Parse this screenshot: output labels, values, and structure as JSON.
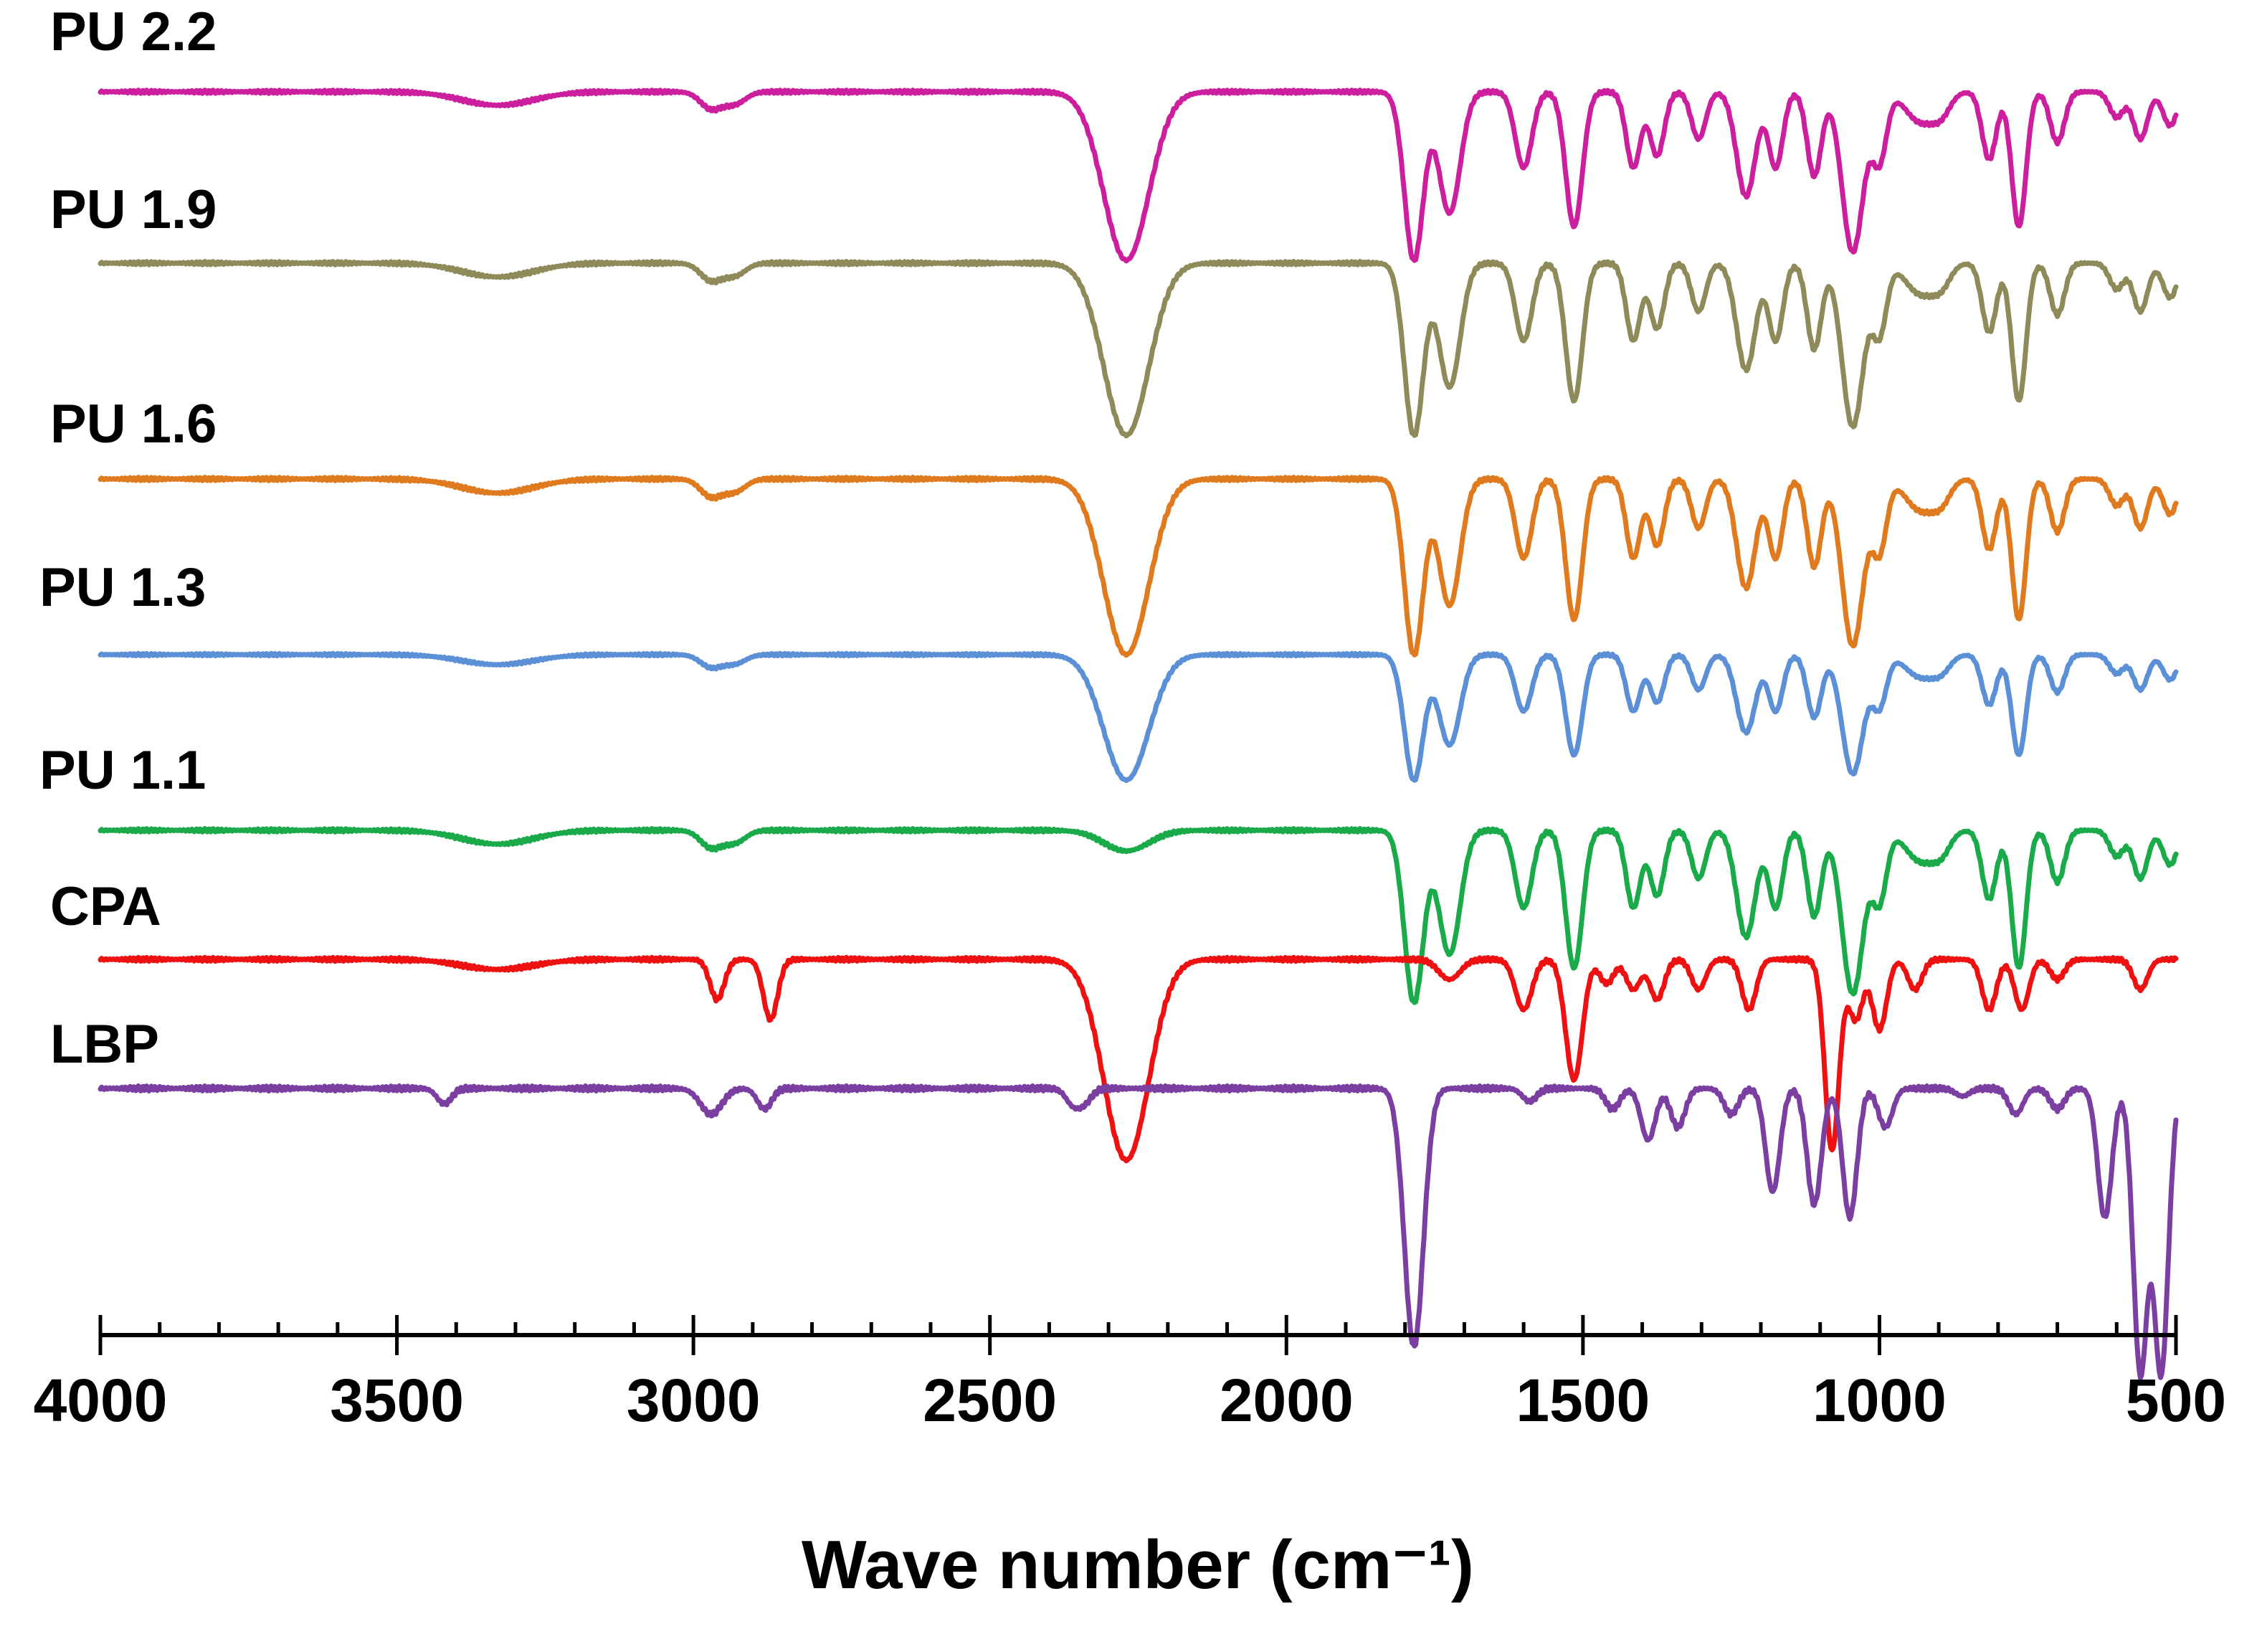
{
  "chart_data": {
    "type": "line",
    "title": "",
    "xlabel": "Wave number (cm⁻¹)",
    "ylabel": "",
    "xlim": [
      4000,
      500
    ],
    "x_ticks": [
      4000,
      3500,
      3000,
      2500,
      2000,
      1500,
      1000,
      500
    ],
    "x_tick_labels": [
      "4000",
      "3500",
      "3000",
      "2500",
      "2000",
      "1500",
      "1000",
      "500"
    ],
    "minor_tick_step": 100,
    "peaks_common": [
      [
        3330,
        0.08
      ],
      [
        2970,
        0.1
      ],
      [
        2930,
        0.07
      ],
      [
        2270,
        1.0
      ],
      [
        1785,
        1.0
      ],
      [
        1725,
        0.72
      ],
      [
        1600,
        0.45
      ],
      [
        1515,
        0.8
      ],
      [
        1415,
        0.45
      ],
      [
        1375,
        0.38
      ],
      [
        1305,
        0.28
      ],
      [
        1225,
        0.62
      ],
      [
        1175,
        0.45
      ],
      [
        1110,
        0.5
      ],
      [
        1045,
        0.95
      ],
      [
        1000,
        0.4
      ],
      [
        930,
        0.18
      ],
      [
        895,
        0.1
      ],
      [
        815,
        0.4
      ],
      [
        765,
        0.8
      ],
      [
        700,
        0.3
      ],
      [
        600,
        0.15
      ],
      [
        560,
        0.28
      ],
      [
        510,
        0.2
      ]
    ],
    "peak_widths": {
      "default": 12,
      "3330": 60,
      "2970": 18,
      "2930": 18,
      "2270": 38,
      "1785": 16,
      "1725": 18,
      "1600": 14,
      "1515": 14,
      "1225": 16,
      "1175": 12,
      "1045": 18,
      "930": 25,
      "895": 15
    },
    "series": [
      {
        "name": "PU 2.2",
        "label": "PU 2.2",
        "color": "#cc1f9e",
        "baseline": 0.98,
        "scale": 0.38,
        "peaks": "common"
      },
      {
        "name": "PU 1.9",
        "label": "PU 1.9",
        "color": "#8e8a5a",
        "baseline": 0.92,
        "scale": 0.4,
        "peaks": "common"
      },
      {
        "name": "PU 1.6",
        "label": "PU 1.6",
        "color": "#e07a1f",
        "baseline": 0.86,
        "scale": 0.42,
        "peaks": "common"
      },
      {
        "name": "PU 1.3",
        "label": "PU 1.3",
        "color": "#5b8fd6",
        "baseline": 0.8,
        "scale": 0.42,
        "peaks": "common"
      },
      {
        "name": "PU 1.1",
        "label": "PU 1.1",
        "color": "#1aaa4a",
        "baseline": 0.74,
        "scale": 0.48,
        "peaks_scale": {
          "2270": 0.12
        },
        "peaks": "common"
      },
      {
        "name": "CPA",
        "label": "CPA",
        "color": "#ee1111",
        "baseline": 0.7,
        "scale": 0.45,
        "peaks": [
          [
            3330,
            0.05
          ],
          [
            2960,
            0.2
          ],
          [
            2870,
            0.3
          ],
          [
            2270,
            1.0
          ],
          [
            1725,
            0.1
          ],
          [
            1600,
            0.25
          ],
          [
            1515,
            0.6
          ],
          [
            1460,
            0.12
          ],
          [
            1415,
            0.15
          ],
          [
            1375,
            0.2
          ],
          [
            1305,
            0.15
          ],
          [
            1220,
            0.25
          ],
          [
            1080,
            0.95
          ],
          [
            1040,
            0.3
          ],
          [
            1000,
            0.35
          ],
          [
            940,
            0.15
          ],
          [
            815,
            0.25
          ],
          [
            760,
            0.25
          ],
          [
            700,
            0.1
          ],
          [
            560,
            0.15
          ]
        ]
      },
      {
        "name": "LBP",
        "label": "LBP",
        "color": "#7a3fa0",
        "baseline": 0.64,
        "scale": 0.55,
        "peaks": [
          [
            3420,
            0.06
          ],
          [
            2970,
            0.1
          ],
          [
            2880,
            0.08
          ],
          [
            2360,
            0.06
          ],
          [
            2340,
            0.05
          ],
          [
            1785,
            1.0
          ],
          [
            1590,
            0.05
          ],
          [
            1450,
            0.08
          ],
          [
            1390,
            0.2
          ],
          [
            1340,
            0.15
          ],
          [
            1250,
            0.1
          ],
          [
            1180,
            0.4
          ],
          [
            1110,
            0.45
          ],
          [
            1050,
            0.5
          ],
          [
            990,
            0.15
          ],
          [
            860,
            0.03
          ],
          [
            770,
            0.1
          ],
          [
            700,
            0.08
          ],
          [
            620,
            0.5
          ],
          [
            560,
            1.1
          ],
          [
            525,
            1.1
          ]
        ]
      }
    ]
  }
}
